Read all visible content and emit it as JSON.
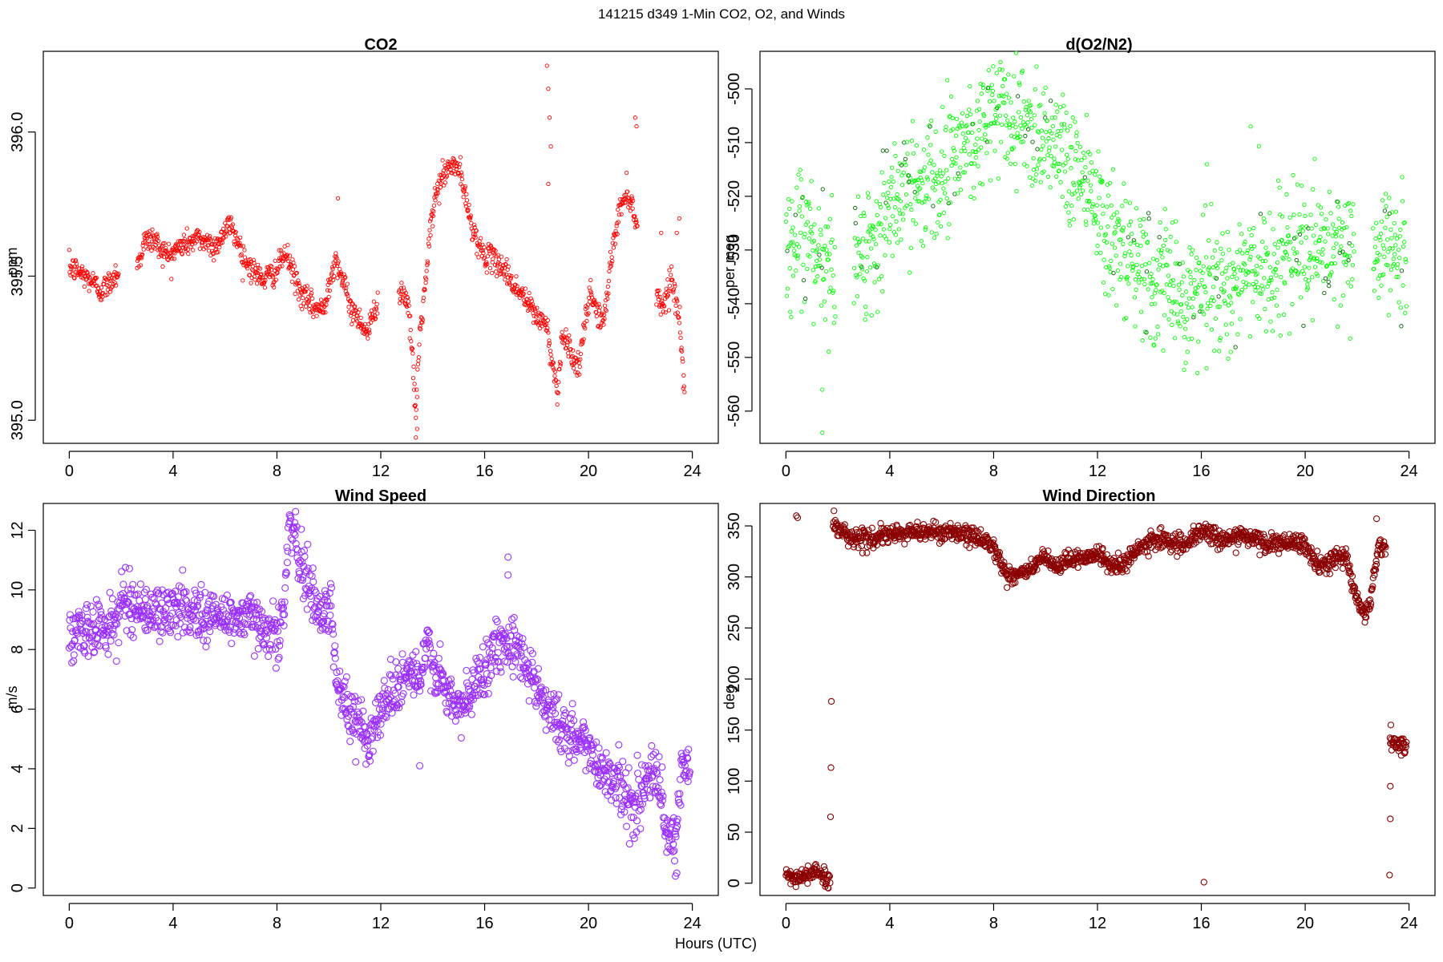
{
  "figure_title": "141215   d349   1-Min CO2, O2, and Winds",
  "xlabel": "Hours (UTC)",
  "chart_data": [
    {
      "type": "scatter",
      "title": "CO2",
      "xlabel": "Hours (UTC)",
      "ylabel": "ppm",
      "xlim": [
        -1,
        25
      ],
      "ylim": [
        394.92,
        396.28
      ],
      "xticks": [
        0,
        4,
        8,
        12,
        16,
        20,
        24
      ],
      "yticks": [
        395.0,
        395.5,
        396.0
      ],
      "ytick_labels": [
        "395.0",
        "395.5",
        "396.0"
      ],
      "color": "#ff0000",
      "marker_radius_hint": "small",
      "gaps": [
        [
          1.9,
          2.6
        ],
        [
          11.9,
          12.7
        ],
        [
          21.9,
          22.6
        ]
      ],
      "curve": [
        [
          0.0,
          395.53
        ],
        [
          0.3,
          395.52
        ],
        [
          0.6,
          395.5
        ],
        [
          0.9,
          395.48
        ],
        [
          1.2,
          395.45
        ],
        [
          1.5,
          395.47
        ],
        [
          1.8,
          395.51
        ],
        [
          2.6,
          395.53
        ],
        [
          2.9,
          395.62
        ],
        [
          3.2,
          395.63
        ],
        [
          3.5,
          395.6
        ],
        [
          3.8,
          395.57
        ],
        [
          4.1,
          395.59
        ],
        [
          4.4,
          395.61
        ],
        [
          4.7,
          395.62
        ],
        [
          5.0,
          395.63
        ],
        [
          5.3,
          395.62
        ],
        [
          5.6,
          395.6
        ],
        [
          5.9,
          395.64
        ],
        [
          6.2,
          395.68
        ],
        [
          6.5,
          395.62
        ],
        [
          6.8,
          395.55
        ],
        [
          7.1,
          395.52
        ],
        [
          7.4,
          395.49
        ],
        [
          7.7,
          395.5
        ],
        [
          8.0,
          395.52
        ],
        [
          8.3,
          395.58
        ],
        [
          8.6,
          395.52
        ],
        [
          8.9,
          395.44
        ],
        [
          9.2,
          395.41
        ],
        [
          9.5,
          395.39
        ],
        [
          9.8,
          395.38
        ],
        [
          10.1,
          395.52
        ],
        [
          10.3,
          395.56
        ],
        [
          10.6,
          395.46
        ],
        [
          10.9,
          395.38
        ],
        [
          11.2,
          395.35
        ],
        [
          11.5,
          395.3
        ],
        [
          11.8,
          395.4
        ],
        [
          12.7,
          395.45
        ],
        [
          13.0,
          395.43
        ],
        [
          13.2,
          395.25
        ],
        [
          13.35,
          395.02
        ],
        [
          13.5,
          395.3
        ],
        [
          13.7,
          395.45
        ],
        [
          13.9,
          395.65
        ],
        [
          14.1,
          395.78
        ],
        [
          14.4,
          395.85
        ],
        [
          14.7,
          395.88
        ],
        [
          15.0,
          395.88
        ],
        [
          15.3,
          395.75
        ],
        [
          15.6,
          395.65
        ],
        [
          15.9,
          395.58
        ],
        [
          16.2,
          395.56
        ],
        [
          16.5,
          395.55
        ],
        [
          16.8,
          395.52
        ],
        [
          17.1,
          395.47
        ],
        [
          17.4,
          395.44
        ],
        [
          17.7,
          395.4
        ],
        [
          18.0,
          395.36
        ],
        [
          18.3,
          395.34
        ],
        [
          18.45,
          395.3
        ],
        [
          18.6,
          395.2
        ],
        [
          18.8,
          395.1
        ],
        [
          19.0,
          395.3
        ],
        [
          19.3,
          395.25
        ],
        [
          19.6,
          395.17
        ],
        [
          19.9,
          395.35
        ],
        [
          20.1,
          395.45
        ],
        [
          20.3,
          395.38
        ],
        [
          20.6,
          395.34
        ],
        [
          20.9,
          395.58
        ],
        [
          21.2,
          395.73
        ],
        [
          21.5,
          395.8
        ],
        [
          21.8,
          395.7
        ],
        [
          22.0,
          395.68
        ],
        [
          22.6,
          395.43
        ],
        [
          22.9,
          395.4
        ],
        [
          23.2,
          395.5
        ],
        [
          23.5,
          395.35
        ],
        [
          23.7,
          395.1
        ]
      ],
      "scatter": 0.022,
      "outliers": [
        [
          18.4,
          396.23
        ],
        [
          18.45,
          396.15
        ],
        [
          18.5,
          396.05
        ],
        [
          18.55,
          395.95
        ],
        [
          18.45,
          395.82
        ],
        [
          21.8,
          396.05
        ],
        [
          21.85,
          396.02
        ],
        [
          10.35,
          395.77
        ],
        [
          13.35,
          394.94
        ],
        [
          13.4,
          394.97
        ],
        [
          13.3,
          395.05
        ],
        [
          23.4,
          395.65
        ],
        [
          23.5,
          395.7
        ],
        [
          22.8,
          395.65
        ]
      ]
    },
    {
      "type": "scatter",
      "title": "d(O2/N2)",
      "xlabel": "Hours (UTC)",
      "ylabel": "per meg",
      "xlim": [
        -1,
        25
      ],
      "ylim": [
        -566,
        -493
      ],
      "xticks": [
        0,
        4,
        8,
        12,
        16,
        20,
        24
      ],
      "yticks": [
        -560,
        -550,
        -540,
        -530,
        -520,
        -510,
        -500
      ],
      "ytick_labels": [
        "-560",
        "-550",
        "-540",
        "-530",
        "-520",
        "-510",
        "-500"
      ],
      "color": "#00ff00",
      "accent_color": "#006400",
      "gaps": [
        [
          1.9,
          2.6
        ],
        [
          21.9,
          22.6
        ]
      ],
      "curve": [
        [
          0.0,
          -530
        ],
        [
          0.5,
          -530
        ],
        [
          1.0,
          -529
        ],
        [
          1.5,
          -532
        ],
        [
          1.8,
          -533
        ],
        [
          2.6,
          -531
        ],
        [
          3.0,
          -530
        ],
        [
          3.5,
          -527
        ],
        [
          4.0,
          -523
        ],
        [
          4.5,
          -520
        ],
        [
          5.0,
          -518
        ],
        [
          5.5,
          -516
        ],
        [
          6.0,
          -514
        ],
        [
          6.5,
          -512
        ],
        [
          7.0,
          -510
        ],
        [
          7.5,
          -507
        ],
        [
          8.0,
          -505
        ],
        [
          8.5,
          -505
        ],
        [
          9.0,
          -506
        ],
        [
          9.5,
          -507
        ],
        [
          10.0,
          -508
        ],
        [
          10.5,
          -510
        ],
        [
          11.0,
          -513
        ],
        [
          11.5,
          -516
        ],
        [
          12.0,
          -521
        ],
        [
          12.5,
          -527
        ],
        [
          13.0,
          -532
        ],
        [
          13.5,
          -534
        ],
        [
          14.0,
          -535
        ],
        [
          14.5,
          -536
        ],
        [
          15.0,
          -537
        ],
        [
          15.5,
          -538
        ],
        [
          16.0,
          -538
        ],
        [
          16.5,
          -537
        ],
        [
          17.0,
          -537
        ],
        [
          17.5,
          -535
        ],
        [
          18.0,
          -534
        ],
        [
          18.5,
          -533
        ],
        [
          19.0,
          -532
        ],
        [
          19.5,
          -532
        ],
        [
          20.0,
          -531
        ],
        [
          20.5,
          -530
        ],
        [
          21.0,
          -530
        ],
        [
          21.5,
          -530
        ],
        [
          21.9,
          -531
        ],
        [
          22.6,
          -531
        ],
        [
          23.0,
          -531
        ],
        [
          23.5,
          -531
        ],
        [
          23.9,
          -531
        ]
      ],
      "scatter": 6.0,
      "outliers": [
        [
          1.4,
          -556
        ],
        [
          1.4,
          -564
        ],
        [
          17.9,
          -507
        ],
        [
          16.2,
          -552
        ]
      ]
    },
    {
      "type": "scatter",
      "title": "Wind Speed",
      "xlabel": "Hours (UTC)",
      "ylabel": "m/s",
      "xlim": [
        -1,
        25
      ],
      "ylim": [
        -0.25,
        12.9
      ],
      "xticks": [
        0,
        4,
        8,
        12,
        16,
        20,
        24
      ],
      "yticks": [
        0,
        2,
        4,
        6,
        8,
        10,
        12
      ],
      "ytick_labels": [
        "0",
        "2",
        "4",
        "6",
        "8",
        "10",
        "12"
      ],
      "color": "#9b30ff",
      "gaps": [],
      "curve": [
        [
          0.0,
          8.4
        ],
        [
          0.5,
          8.6
        ],
        [
          1.0,
          8.7
        ],
        [
          1.5,
          8.8
        ],
        [
          1.9,
          9.0
        ],
        [
          2.0,
          9.7
        ],
        [
          2.5,
          9.5
        ],
        [
          3.0,
          9.3
        ],
        [
          3.5,
          9.2
        ],
        [
          4.0,
          9.3
        ],
        [
          4.5,
          9.4
        ],
        [
          5.0,
          9.2
        ],
        [
          5.5,
          9.1
        ],
        [
          6.0,
          9.1
        ],
        [
          6.5,
          9.1
        ],
        [
          7.0,
          9.0
        ],
        [
          7.5,
          8.9
        ],
        [
          7.8,
          8.5
        ],
        [
          8.1,
          8.6
        ],
        [
          8.3,
          9.5
        ],
        [
          8.45,
          12.5
        ],
        [
          8.7,
          11.5
        ],
        [
          9.0,
          10.6
        ],
        [
          9.3,
          10.0
        ],
        [
          9.6,
          9.4
        ],
        [
          9.9,
          9.2
        ],
        [
          10.1,
          9.5
        ],
        [
          10.3,
          7.0
        ],
        [
          10.6,
          6.2
        ],
        [
          10.9,
          5.6
        ],
        [
          11.3,
          5.4
        ],
        [
          11.6,
          5.1
        ],
        [
          12.0,
          6.0
        ],
        [
          12.4,
          6.6
        ],
        [
          12.8,
          7.0
        ],
        [
          13.2,
          7.3
        ],
        [
          13.5,
          6.8
        ],
        [
          13.8,
          8.2
        ],
        [
          14.1,
          7.3
        ],
        [
          14.5,
          6.5
        ],
        [
          15.0,
          6.0
        ],
        [
          15.4,
          6.3
        ],
        [
          15.8,
          7.2
        ],
        [
          16.2,
          7.8
        ],
        [
          16.6,
          8.2
        ],
        [
          17.0,
          8.4
        ],
        [
          17.4,
          7.8
        ],
        [
          17.8,
          7.2
        ],
        [
          18.2,
          6.4
        ],
        [
          18.6,
          5.9
        ],
        [
          19.0,
          5.3
        ],
        [
          19.4,
          5.0
        ],
        [
          19.8,
          4.9
        ],
        [
          20.2,
          4.4
        ],
        [
          20.6,
          3.9
        ],
        [
          21.0,
          3.7
        ],
        [
          21.4,
          3.2
        ],
        [
          21.8,
          2.6
        ],
        [
          22.1,
          3.4
        ],
        [
          22.4,
          3.8
        ],
        [
          22.7,
          3.6
        ],
        [
          23.0,
          1.8
        ],
        [
          23.3,
          1.3
        ],
        [
          23.6,
          3.9
        ],
        [
          23.9,
          4.0
        ]
      ],
      "scatter": 0.45,
      "outliers": [
        [
          13.5,
          4.1
        ],
        [
          16.9,
          11.1
        ],
        [
          16.9,
          10.5
        ],
        [
          23.35,
          0.4
        ],
        [
          23.4,
          0.5
        ]
      ]
    },
    {
      "type": "scatter",
      "title": "Wind Direction",
      "xlabel": "Hours (UTC)",
      "ylabel": "deg",
      "xlim": [
        -1,
        25
      ],
      "ylim": [
        -12,
        372
      ],
      "xticks": [
        0,
        4,
        8,
        12,
        16,
        20,
        24
      ],
      "yticks": [
        0,
        50,
        100,
        150,
        200,
        250,
        300,
        350
      ],
      "ytick_labels": [
        "0",
        "50",
        "100",
        "150",
        "200",
        "250",
        "300",
        "350"
      ],
      "color": "#8b0000",
      "gaps": [
        [
          1.75,
          1.8
        ],
        [
          23.1,
          23.25
        ]
      ],
      "curve": [
        [
          0.0,
          9
        ],
        [
          0.3,
          5
        ],
        [
          0.6,
          4
        ],
        [
          0.9,
          11
        ],
        [
          1.2,
          11
        ],
        [
          1.5,
          5
        ],
        [
          1.7,
          2
        ],
        [
          1.8,
          355
        ],
        [
          2.1,
          345
        ],
        [
          2.5,
          340
        ],
        [
          3.0,
          337
        ],
        [
          3.5,
          338
        ],
        [
          4.0,
          341
        ],
        [
          4.5,
          343
        ],
        [
          5.0,
          344
        ],
        [
          5.5,
          345
        ],
        [
          6.0,
          344
        ],
        [
          6.5,
          343
        ],
        [
          7.0,
          340
        ],
        [
          7.5,
          337
        ],
        [
          7.9,
          335
        ],
        [
          8.2,
          318
        ],
        [
          8.5,
          302
        ],
        [
          9.0,
          303
        ],
        [
          9.5,
          308
        ],
        [
          9.9,
          320
        ],
        [
          10.2,
          311
        ],
        [
          10.6,
          310
        ],
        [
          11.0,
          318
        ],
        [
          11.5,
          320
        ],
        [
          12.0,
          322
        ],
        [
          12.5,
          312
        ],
        [
          13.0,
          312
        ],
        [
          13.5,
          325
        ],
        [
          14.0,
          335
        ],
        [
          14.5,
          338
        ],
        [
          15.0,
          332
        ],
        [
          15.5,
          332
        ],
        [
          16.0,
          345
        ],
        [
          16.5,
          340
        ],
        [
          17.0,
          337
        ],
        [
          17.5,
          340
        ],
        [
          18.0,
          338
        ],
        [
          18.5,
          332
        ],
        [
          19.0,
          333
        ],
        [
          19.5,
          332
        ],
        [
          20.0,
          332
        ],
        [
          20.4,
          312
        ],
        [
          20.8,
          312
        ],
        [
          21.2,
          320
        ],
        [
          21.6,
          318
        ],
        [
          21.9,
          285
        ],
        [
          22.2,
          265
        ],
        [
          22.5,
          272
        ],
        [
          22.8,
          330
        ],
        [
          23.1,
          325
        ],
        [
          23.25,
          140
        ],
        [
          23.5,
          138
        ],
        [
          23.9,
          135
        ]
      ],
      "scatter": 4.5,
      "outliers": [
        [
          0.4,
          360
        ],
        [
          0.45,
          358
        ],
        [
          16.1,
          1
        ],
        [
          22.75,
          357
        ],
        [
          23.3,
          155
        ],
        [
          23.28,
          95
        ],
        [
          23.28,
          63
        ],
        [
          23.25,
          8
        ]
      ]
    }
  ]
}
